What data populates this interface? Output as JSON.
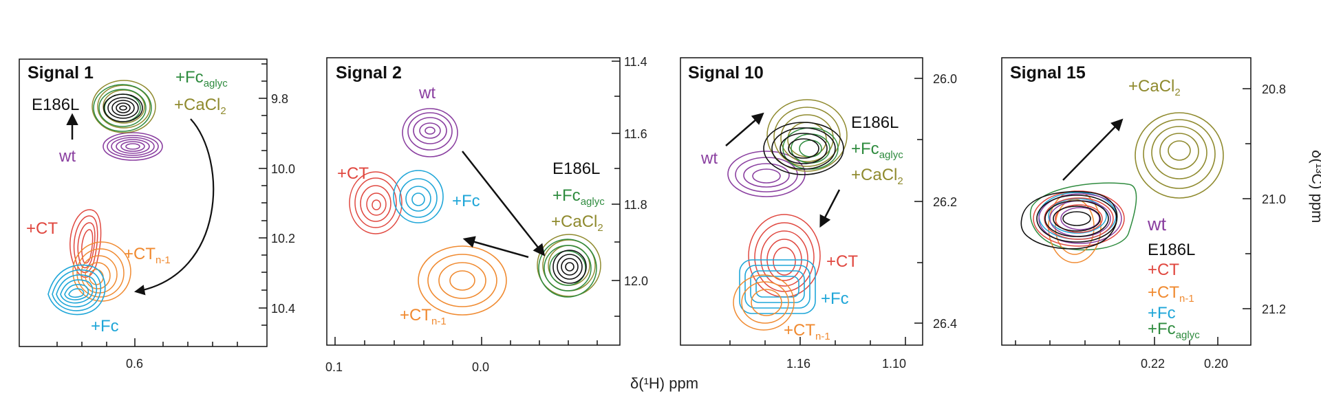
{
  "colors": {
    "wt": "#8a3fa0",
    "E186L": "#111111",
    "CT": "#e0473f",
    "CTn1": "#f08a30",
    "Fc": "#1fa6d8",
    "Fc_aglyc": "#2e8b3e",
    "CaCl2": "#8f8a2e"
  },
  "axes": {
    "x_label": "δ(¹H) ppm",
    "y_label": "δ(¹³C) ppm"
  },
  "labels": {
    "wt": "wt",
    "E186L": "E186L",
    "plus_ct": "+CT",
    "plus_ct_n1_main": "+CT",
    "plus_ct_n1_sub": "n-1",
    "plus_fc": "+Fc",
    "plus_fc_aglyc_main": "+Fc",
    "plus_fc_aglyc_sub": "aglyc",
    "plus_cacl2_main": "+CaCl",
    "plus_cacl2_sub": "2"
  },
  "panels": [
    {
      "title": "Signal 1",
      "x_ticks": [
        "0.6"
      ],
      "y_ticks": [
        "9.8",
        "10.0",
        "10.2",
        "10.4"
      ]
    },
    {
      "title": "Signal 2",
      "x_ticks": [
        "0.1",
        "0.0"
      ],
      "y_ticks": [
        "11.4",
        "11.6",
        "11.8",
        "12.0"
      ]
    },
    {
      "title": "Signal 10",
      "x_ticks": [
        "1.16",
        "1.10"
      ],
      "y_ticks": [
        "26.0",
        "26.2",
        "26.4"
      ]
    },
    {
      "title": "Signal 15",
      "x_ticks": [
        "0.22",
        "0.20"
      ],
      "y_ticks": [
        "20.8",
        "21.0",
        "21.2"
      ]
    }
  ]
}
